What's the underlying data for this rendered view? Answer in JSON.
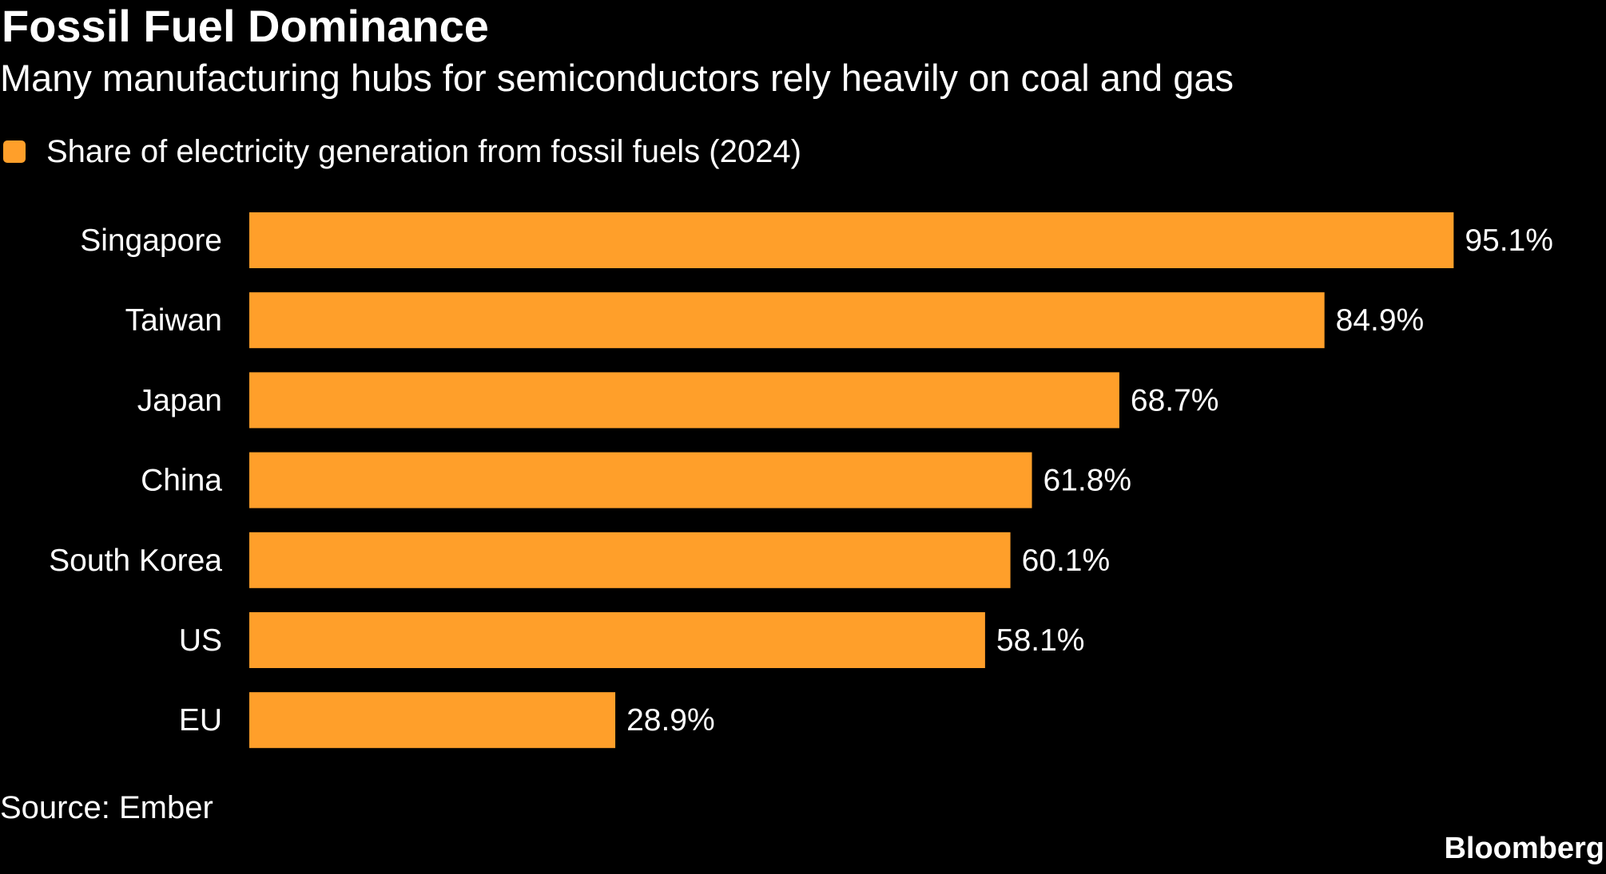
{
  "title": "Fossil Fuel Dominance",
  "subtitle": "Many manufacturing hubs for semiconductors rely heavily on coal and gas",
  "source": "Source: Ember",
  "brand": "Bloomberg",
  "colors": {
    "bar": "#ff9f2a",
    "background": "#000000",
    "text": "#ffffff"
  },
  "chart_data": {
    "type": "bar",
    "orientation": "horizontal",
    "title": "Fossil Fuel Dominance",
    "subtitle": "Many manufacturing hubs for semiconductors rely heavily on coal and gas",
    "legend": {
      "placement": "top-left",
      "entries": [
        "Share of electricity generation from fossil fuels (2024)"
      ]
    },
    "categories": [
      "Singapore",
      "Taiwan",
      "Japan",
      "China",
      "South Korea",
      "US",
      "EU"
    ],
    "series": [
      {
        "name": "Share of electricity generation from fossil fuels (2024)",
        "values": [
          95.1,
          84.9,
          68.7,
          61.8,
          60.1,
          58.1,
          28.9
        ]
      }
    ],
    "data_labels": [
      "95.1%",
      "84.9%",
      "68.7%",
      "61.8%",
      "60.1%",
      "58.1%",
      "28.9%"
    ],
    "xlim": [
      0,
      100
    ],
    "grid": false,
    "axes_visible": false
  }
}
